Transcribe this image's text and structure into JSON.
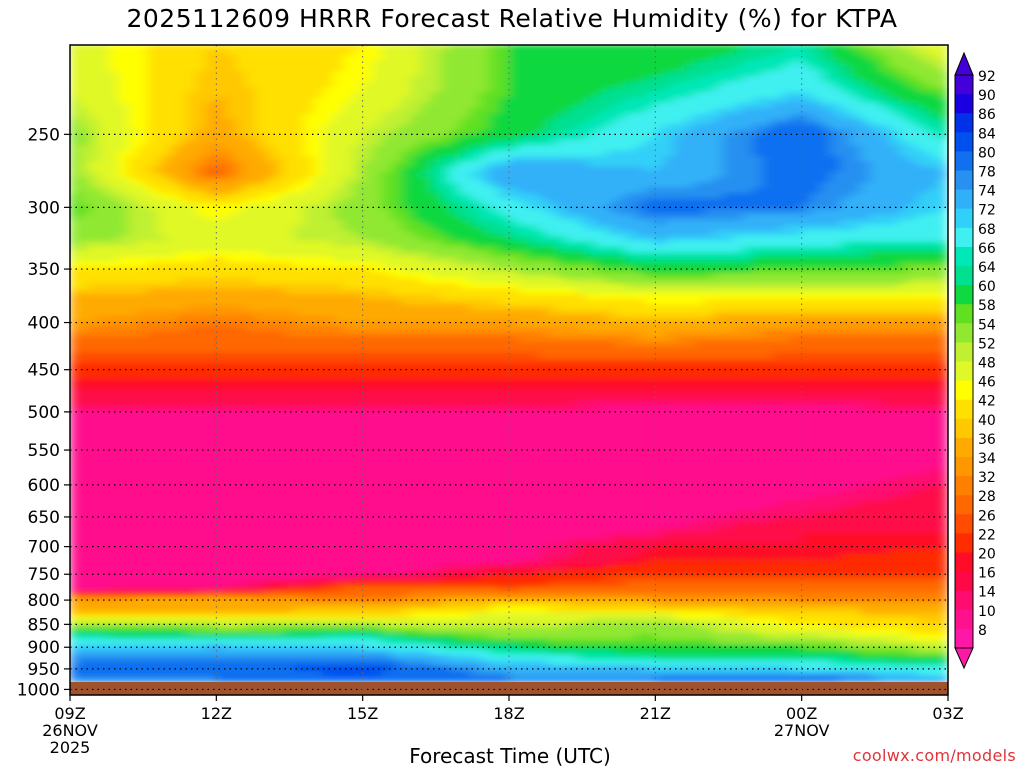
{
  "header": {
    "title": "2025112609 HRRR Forecast Relative Humidity (%) for KTPA"
  },
  "footer": {
    "credit": "coolwx.com/models"
  },
  "chart_data": {
    "type": "heatmap",
    "title": "2025112609 HRRR Forecast Relative Humidity (%) for KTPA",
    "xlabel": "Forecast Time (UTC)",
    "ylabel": "",
    "grid": true,
    "y_scale": "log-pressure (inverted)",
    "x": {
      "range": [
        9,
        27
      ],
      "ticks": [
        {
          "value": 9,
          "lines": [
            "09Z",
            "26NOV",
            "2025"
          ]
        },
        {
          "value": 12,
          "lines": [
            "12Z"
          ]
        },
        {
          "value": 15,
          "lines": [
            "15Z"
          ]
        },
        {
          "value": 18,
          "lines": [
            "18Z"
          ]
        },
        {
          "value": 21,
          "lines": [
            "21Z"
          ]
        },
        {
          "value": 24,
          "lines": [
            "00Z",
            "27NOV"
          ]
        },
        {
          "value": 27,
          "lines": [
            "03Z"
          ]
        }
      ]
    },
    "y": {
      "range": [
        1014,
        200
      ],
      "ticks": [
        250,
        300,
        350,
        400,
        450,
        500,
        550,
        600,
        650,
        700,
        750,
        800,
        850,
        900,
        950,
        1000
      ]
    },
    "colorbar": {
      "labels": [
        "92",
        "90",
        "86",
        "84",
        "80",
        "78",
        "74",
        "72",
        "68",
        "66",
        "64",
        "60",
        "58",
        "54",
        "52",
        "48",
        "46",
        "42",
        "40",
        "36",
        "34",
        "32",
        "28",
        "26",
        "22",
        "20",
        "16",
        "14",
        "10",
        "8"
      ],
      "colors": [
        "#4400d8",
        "#1a00e0",
        "#0030e8",
        "#0050f0",
        "#1070f0",
        "#2890f0",
        "#30b0f8",
        "#30d0f8",
        "#40f0f0",
        "#00e8b8",
        "#00e090",
        "#10d840",
        "#60e020",
        "#90e830",
        "#c0f030",
        "#e0f828",
        "#ffff00",
        "#ffe000",
        "#ffc800",
        "#ffaa00",
        "#ff9800",
        "#ff8000",
        "#ff6800",
        "#ff4c00",
        "#ff2c00",
        "#ff0c28",
        "#ff0848",
        "#ff0c70",
        "#ff108c",
        "#ff18a8"
      ]
    },
    "profile_levels_hPa": [
      1000,
      975,
      950,
      925,
      900,
      875,
      850,
      825,
      800,
      775,
      750,
      725,
      700,
      675,
      650,
      600,
      550,
      500,
      475,
      450,
      425,
      400,
      375,
      350,
      325,
      300,
      275,
      250,
      225,
      200
    ],
    "profiles": [
      {
        "hour": 9,
        "rh": [
          74,
          80,
          82,
          78,
          72,
          66,
          56,
          40,
          36,
          10,
          12,
          12,
          12,
          10,
          12,
          10,
          10,
          14,
          20,
          24,
          30,
          36,
          40,
          46,
          56,
          60,
          56,
          56,
          52,
          50
        ]
      },
      {
        "hour": 12,
        "rh": [
          72,
          80,
          82,
          80,
          74,
          64,
          52,
          40,
          38,
          12,
          10,
          10,
          12,
          10,
          10,
          10,
          10,
          14,
          20,
          24,
          30,
          32,
          38,
          44,
          50,
          46,
          30,
          38,
          40,
          42
        ]
      },
      {
        "hour": 15,
        "rh": [
          76,
          84,
          86,
          80,
          72,
          66,
          52,
          42,
          32,
          30,
          10,
          10,
          12,
          10,
          10,
          10,
          10,
          14,
          20,
          24,
          30,
          36,
          40,
          46,
          54,
          56,
          54,
          52,
          48,
          46
        ]
      },
      {
        "hour": 18,
        "rh": [
          74,
          80,
          76,
          70,
          64,
          56,
          52,
          48,
          40,
          26,
          22,
          12,
          12,
          10,
          10,
          10,
          10,
          14,
          20,
          24,
          30,
          36,
          44,
          54,
          64,
          70,
          78,
          62,
          60,
          60
        ]
      },
      {
        "hour": 21,
        "rh": [
          72,
          80,
          74,
          66,
          60,
          58,
          56,
          46,
          36,
          30,
          26,
          22,
          20,
          14,
          12,
          10,
          10,
          12,
          20,
          24,
          32,
          40,
          48,
          62,
          74,
          82,
          74,
          72,
          66,
          60
        ]
      },
      {
        "hour": 24,
        "rh": [
          76,
          82,
          72,
          66,
          60,
          52,
          46,
          42,
          34,
          30,
          26,
          22,
          20,
          20,
          16,
          12,
          10,
          12,
          20,
          24,
          30,
          36,
          48,
          60,
          70,
          80,
          82,
          84,
          72,
          66
        ]
      },
      {
        "hour": 27,
        "rh": [
          80,
          74,
          68,
          60,
          52,
          46,
          42,
          40,
          34,
          30,
          26,
          24,
          22,
          20,
          20,
          16,
          12,
          14,
          20,
          24,
          30,
          36,
          48,
          58,
          68,
          72,
          74,
          66,
          58,
          48
        ]
      }
    ]
  }
}
